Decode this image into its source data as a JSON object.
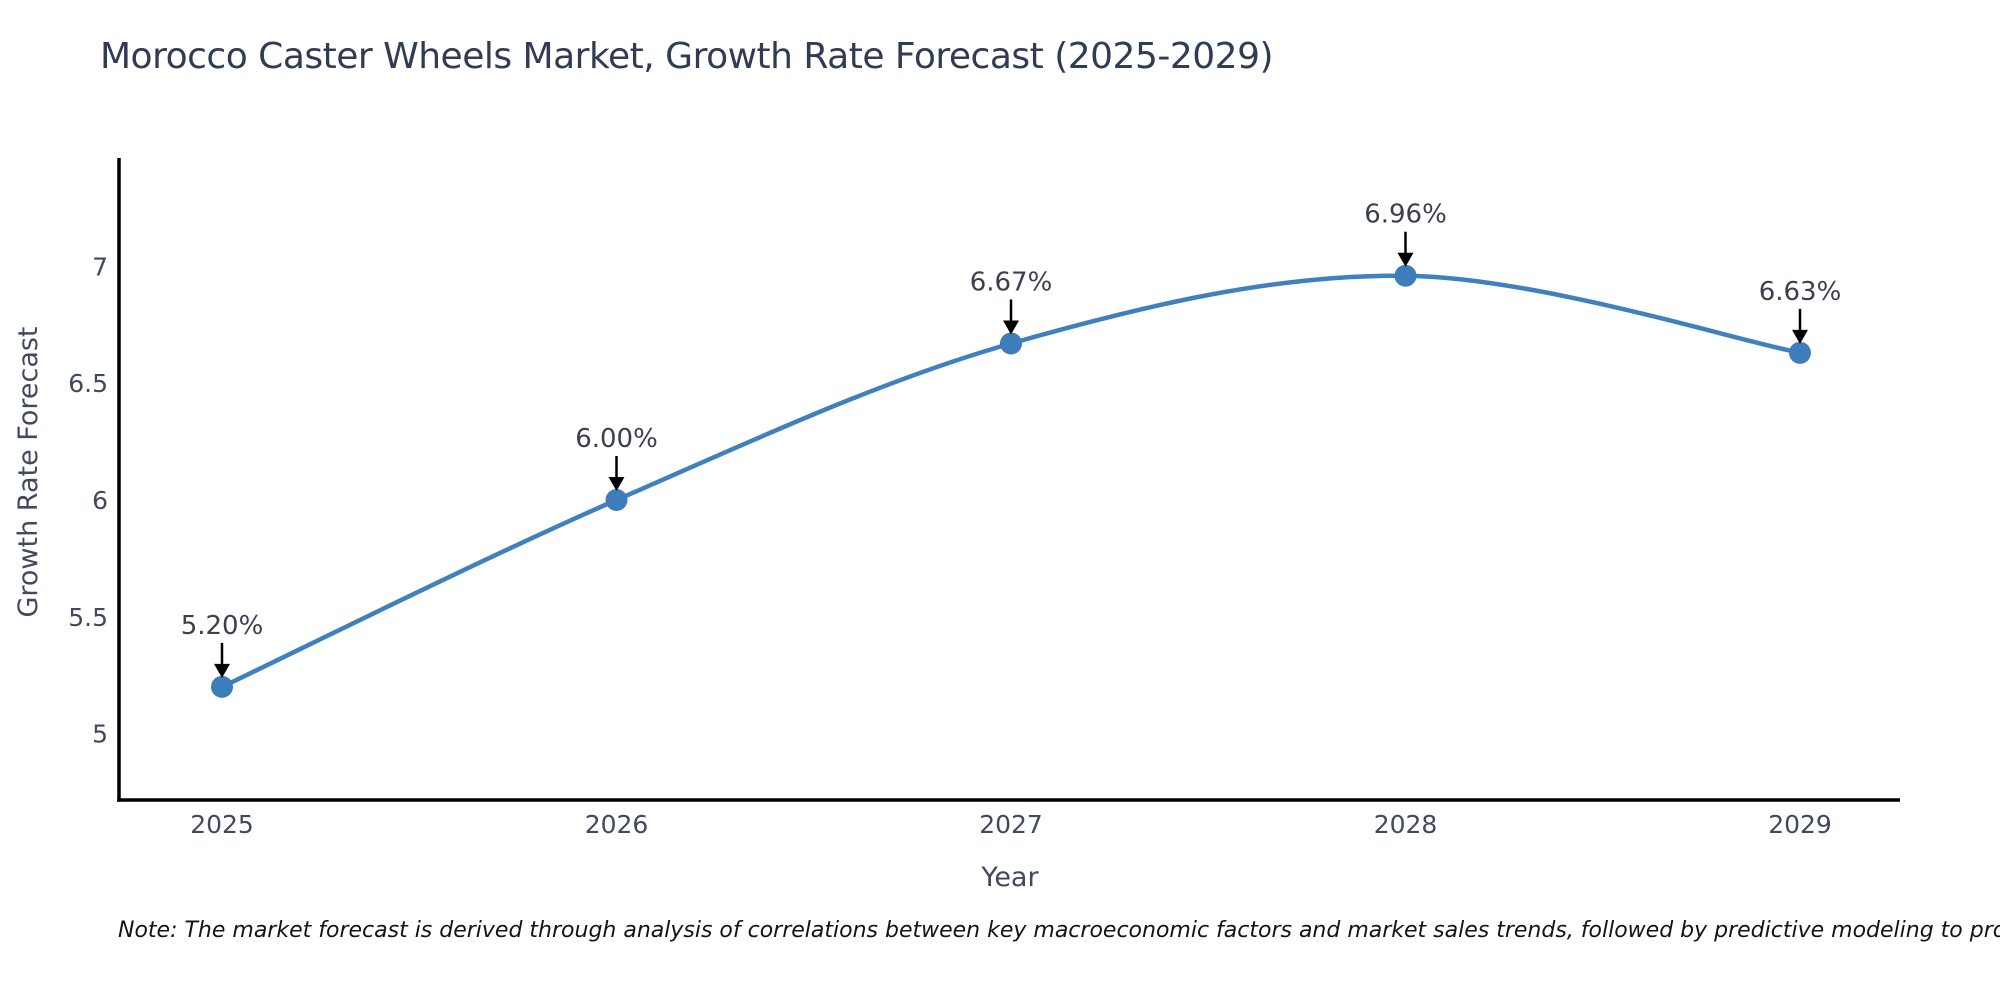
{
  "title": "Morocco Caster Wheels Market, Growth Rate Forecast (2025-2029)",
  "chart_data": {
    "type": "line",
    "categories": [
      "2025",
      "2026",
      "2027",
      "2028",
      "2029"
    ],
    "values": [
      5.2,
      6.0,
      6.67,
      6.96,
      6.63
    ],
    "point_labels": [
      "5.20%",
      "6.00%",
      "6.67%",
      "6.96%",
      "6.63%"
    ],
    "title": "Morocco Caster Wheels Market, Growth Rate Forecast (2025-2029)",
    "xlabel": "Year",
    "ylabel": "Growth Rate Forecast",
    "y_ticks": [
      7,
      6.5,
      6,
      5.5,
      5
    ],
    "y_tick_labels": [
      "7",
      "6.5",
      "6",
      "5.5",
      "5"
    ],
    "ylim": [
      4.7,
      7.45
    ],
    "grid": false,
    "legend": "none",
    "line_color": "#4080bf",
    "marker_color": "#3d7dbb",
    "annotation_arrow_color": "#000000",
    "axis_color": "#000000"
  },
  "note": "Note: The market forecast is derived through analysis of correlations between key macroeconomic factors and market sales trends, followed by predictive modeling to project future sales"
}
